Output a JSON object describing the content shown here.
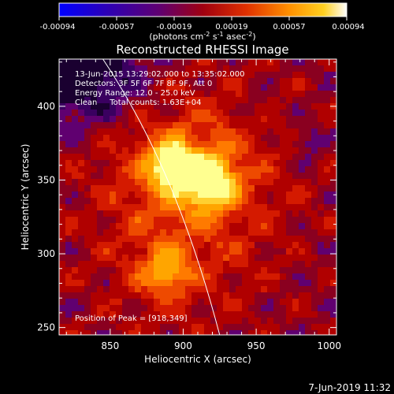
{
  "chart_data": {
    "type": "heatmap",
    "title": "Reconstructed RHESSI Image",
    "xlabel": "Heliocentric X (arcsec)",
    "ylabel": "Heliocentric Y (arcsec)",
    "xlim": [
      815,
      1005
    ],
    "ylim": [
      245,
      432
    ],
    "x_ticks": [
      850,
      900,
      950,
      1000
    ],
    "y_ticks": [
      250,
      300,
      350,
      400
    ],
    "colorbar": {
      "range": [
        -0.00094,
        0.00094
      ],
      "tick_labels": [
        "-0.00094",
        "-0.00057",
        "-0.00019",
        "0.00019",
        "0.00057",
        "0.00094"
      ],
      "unit_text": "(photons cm",
      "unit_sup1": "-2",
      "unit_mid": " s",
      "unit_sup2": "-1",
      "unit_mid2": " asec",
      "unit_sup3": "-2",
      "unit_end": ")"
    },
    "annotations": {
      "time_range": "13-Jun-2015 13:29:02.000 to 13:35:02.000",
      "detectors": "Detectors: 3F 5F 6F 7F 8F 9F, Att 0",
      "energy_range": "Energy Range: 12.0 - 25.0 keV",
      "clean": "Clean     Total counts: 1.63E+04",
      "peak": "Position of Peak = [918,349]"
    },
    "sources": [
      {
        "x": 918,
        "y": 349,
        "intensity": 1.0
      },
      {
        "x": 892,
        "y": 360,
        "intensity": 0.85
      },
      {
        "x": 888,
        "y": 288,
        "intensity": 0.55
      }
    ],
    "limb_curve": [
      [
        845,
        432
      ],
      [
        880,
        380
      ],
      [
        905,
        320
      ],
      [
        925,
        245
      ]
    ],
    "footer_date": "7-Jun-2019 11:32"
  }
}
